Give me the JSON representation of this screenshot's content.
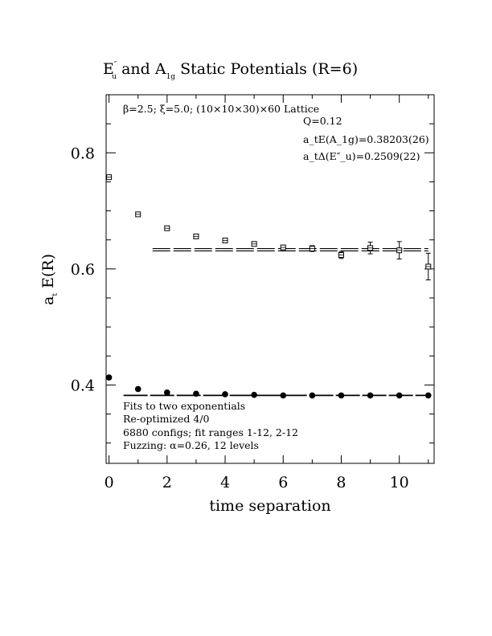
{
  "chart_data": {
    "type": "scatter",
    "title": {
      "pre": "E",
      "pre_sup": "″",
      "pre_sub": "u",
      "mid": " and A",
      "mid_sub": "1g",
      "post": " Static Potentials (R=6)"
    },
    "xlabel": "time separation",
    "ylabel": {
      "pre": "a",
      "pre_sub": "t",
      "post": " E(R)"
    },
    "xlim": [
      -0.1,
      11.2
    ],
    "ylim": [
      0.265,
      0.9
    ],
    "x_ticks": [
      0,
      2,
      4,
      6,
      8,
      10
    ],
    "y_ticks": [
      0.4,
      0.6,
      0.8
    ],
    "annotations": {
      "lattice": "β=2.5; ξ=5.0; (10×10×30)×60 Lattice",
      "q": "Q=0.12",
      "a1g_fit": "a_tE(A_1g)=0.38203(26)",
      "gap_fit": "a_tΔ(E″_u)=0.2509(22)",
      "notes": [
        "Fits to two exponentials",
        "Re-optimized 4/0",
        "6880 configs; fit ranges 1-12, 2-12",
        "Fuzzing: α=0.26, 12 levels"
      ]
    },
    "series": [
      {
        "marker": "open-square",
        "points": [
          {
            "x": 0,
            "y": 0.758,
            "err": 0.002
          },
          {
            "x": 1,
            "y": 0.694,
            "err": 0.002
          },
          {
            "x": 2,
            "y": 0.67,
            "err": 0.002
          },
          {
            "x": 3,
            "y": 0.656,
            "err": 0.002
          },
          {
            "x": 4,
            "y": 0.649,
            "err": 0.003
          },
          {
            "x": 5,
            "y": 0.643,
            "err": 0.004
          },
          {
            "x": 6,
            "y": 0.637,
            "err": 0.004
          },
          {
            "x": 7,
            "y": 0.635,
            "err": 0.005
          },
          {
            "x": 8,
            "y": 0.624,
            "err": 0.006
          },
          {
            "x": 9,
            "y": 0.636,
            "err": 0.01
          },
          {
            "x": 10,
            "y": 0.632,
            "err": 0.015
          },
          {
            "x": 11,
            "y": 0.604,
            "err": 0.023
          }
        ],
        "fit": {
          "x_range": [
            1.5,
            11
          ],
          "y": 0.633,
          "band": 0.002
        }
      },
      {
        "marker": "filled-circle",
        "points": [
          {
            "x": 0,
            "y": 0.413,
            "err": 0.002
          },
          {
            "x": 1,
            "y": 0.393,
            "err": 0.002
          },
          {
            "x": 2,
            "y": 0.387,
            "err": 0.002
          },
          {
            "x": 3,
            "y": 0.385,
            "err": 0.001
          },
          {
            "x": 4,
            "y": 0.384,
            "err": 0.001
          },
          {
            "x": 5,
            "y": 0.383,
            "err": 0.001
          },
          {
            "x": 6,
            "y": 0.382,
            "err": 0.001
          },
          {
            "x": 7,
            "y": 0.382,
            "err": 0.001
          },
          {
            "x": 8,
            "y": 0.382,
            "err": 0.001
          },
          {
            "x": 9,
            "y": 0.382,
            "err": 0.001
          },
          {
            "x": 10,
            "y": 0.382,
            "err": 0.001
          },
          {
            "x": 11,
            "y": 0.382,
            "err": 0.001
          }
        ],
        "fit": {
          "x_range": [
            0.5,
            11
          ],
          "y": 0.38203,
          "band": 0.00026
        }
      }
    ]
  }
}
